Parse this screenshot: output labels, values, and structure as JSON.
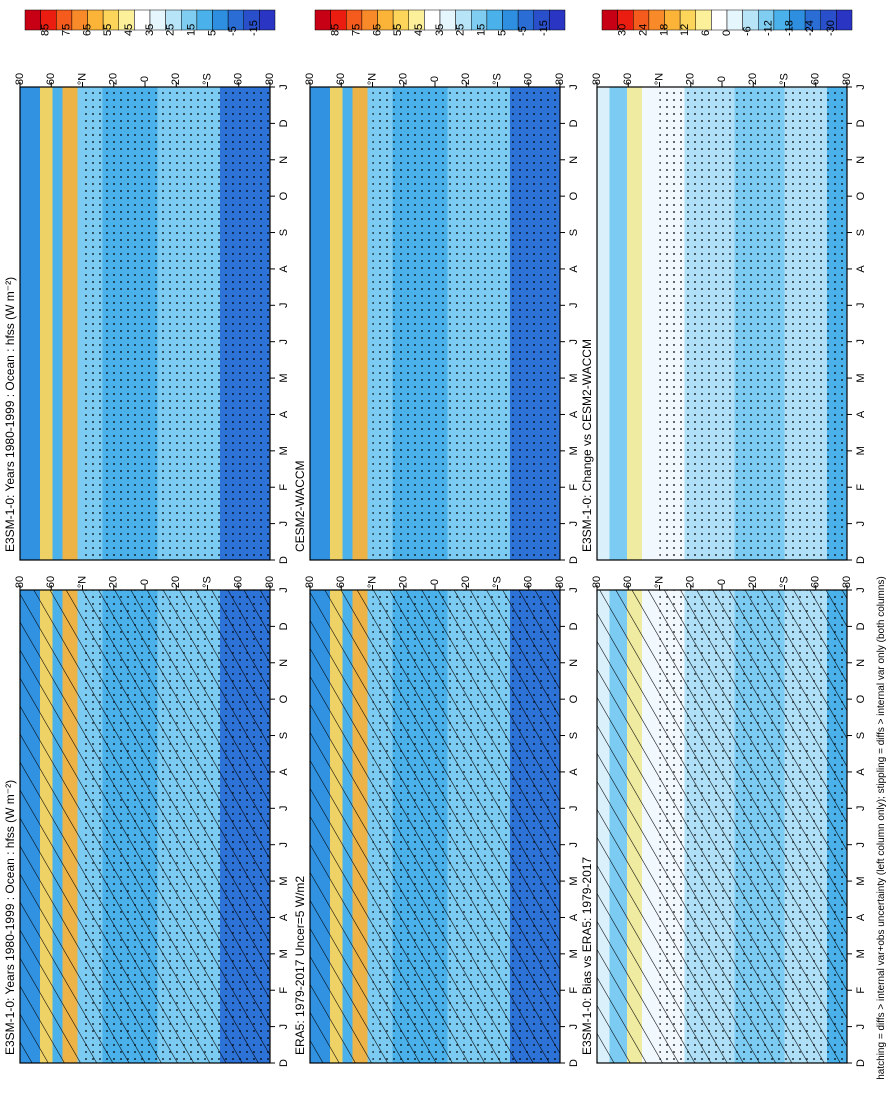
{
  "footnote": "hatching = diffs > internal var+obs uncertainty (left column only); stippling = diffs > internal var only (both columns)",
  "x_tick_labels": [
    "D",
    "J",
    "F",
    "M",
    "A",
    "M",
    "J",
    "J",
    "A",
    "S",
    "O",
    "N",
    "D",
    "J"
  ],
  "y_tick_labels": [
    "80",
    "60",
    "°N",
    "20",
    "0",
    "20",
    "°S",
    "60",
    "80"
  ],
  "colorbars": [
    {
      "labels": [
        "85",
        "75",
        "65",
        "55",
        "45",
        "35",
        "25",
        "15",
        "5",
        "-5",
        "-15"
      ],
      "colors": [
        "#c80016",
        "#ea1d10",
        "#f45b1c",
        "#f98a2a",
        "#fbb338",
        "#fcd55a",
        "#fdf09a",
        "#ffffff",
        "#e6f6fd",
        "#b7e4f7",
        "#80cdf2",
        "#4ab1ea",
        "#2e8fe0",
        "#2a6dd4",
        "#2a4fcb",
        "#2a35c4"
      ]
    },
    {
      "labels": [
        "85",
        "75",
        "65",
        "55",
        "45",
        "35",
        "25",
        "15",
        "5",
        "-5",
        "-15"
      ],
      "colors": [
        "#c80016",
        "#ea1d10",
        "#f45b1c",
        "#f98a2a",
        "#fbb338",
        "#fcd55a",
        "#fdf09a",
        "#ffffff",
        "#e6f6fd",
        "#b7e4f7",
        "#80cdf2",
        "#4ab1ea",
        "#2e8fe0",
        "#2a6dd4",
        "#2a4fcb",
        "#2a35c4"
      ]
    },
    {
      "labels": [
        "30",
        "24",
        "18",
        "12",
        "6",
        "0",
        "-6",
        "-12",
        "-18",
        "-24",
        "-30"
      ],
      "colors": [
        "#c80016",
        "#ea1d10",
        "#f45b1c",
        "#f98a2a",
        "#fbb338",
        "#fcd55a",
        "#fdf09a",
        "#ffffff",
        "#e6f6fd",
        "#b7e4f7",
        "#80cdf2",
        "#4ab1ea",
        "#2e8fe0",
        "#2a6dd4",
        "#2a4fcb",
        "#2a35c4"
      ]
    }
  ],
  "chart_data": [
    {
      "type": "heatmap",
      "title": "E3SM-1-0: Years 1980-1999 : Ocean : hfss (W m⁻²)",
      "xlabel": "",
      "ylabel": "",
      "x": [
        "D",
        "J",
        "F",
        "M",
        "A",
        "M",
        "J",
        "J",
        "A",
        "S",
        "O",
        "N",
        "D",
        "J"
      ],
      "y": [
        "80N",
        "60N",
        "40N",
        "20N",
        "0",
        "20S",
        "40S",
        "60S",
        "80S"
      ],
      "value_range": [
        -15,
        85
      ],
      "overlays": [
        "hatching",
        "stippling"
      ]
    },
    {
      "type": "heatmap",
      "title": "E3SM-1-0: Years 1980-1999 : Ocean : hfss (W m⁻²)",
      "xlabel": "",
      "ylabel": "",
      "x": [
        "D",
        "J",
        "F",
        "M",
        "A",
        "M",
        "J",
        "J",
        "A",
        "S",
        "O",
        "N",
        "D",
        "J"
      ],
      "y": [
        "80N",
        "60N",
        "40N",
        "20N",
        "0",
        "20S",
        "40S",
        "60S",
        "80S"
      ],
      "value_range": [
        -15,
        85
      ],
      "overlays": [
        "stippling"
      ]
    },
    {
      "type": "heatmap",
      "title": "ERA5: 1979-2017 Uncer=5 W/m2",
      "xlabel": "",
      "ylabel": "",
      "x": [
        "D",
        "J",
        "F",
        "M",
        "A",
        "M",
        "J",
        "J",
        "A",
        "S",
        "O",
        "N",
        "D",
        "J"
      ],
      "y": [
        "80N",
        "60N",
        "40N",
        "20N",
        "0",
        "20S",
        "40S",
        "60S",
        "80S"
      ],
      "value_range": [
        -15,
        85
      ],
      "overlays": [
        "hatching",
        "stippling"
      ]
    },
    {
      "type": "heatmap",
      "title": "CESM2-WACCM",
      "xlabel": "",
      "ylabel": "",
      "x": [
        "D",
        "J",
        "F",
        "M",
        "A",
        "M",
        "J",
        "J",
        "A",
        "S",
        "O",
        "N",
        "D",
        "J"
      ],
      "y": [
        "80N",
        "60N",
        "40N",
        "20N",
        "0",
        "20S",
        "40S",
        "60S",
        "80S"
      ],
      "value_range": [
        -15,
        85
      ],
      "overlays": [
        "stippling"
      ]
    },
    {
      "type": "heatmap",
      "title": "E3SM-1-0: Bias vs ERA5: 1979-2017",
      "xlabel": "",
      "ylabel": "",
      "x": [
        "D",
        "J",
        "F",
        "M",
        "A",
        "M",
        "J",
        "J",
        "A",
        "S",
        "O",
        "N",
        "D",
        "J"
      ],
      "y": [
        "80N",
        "60N",
        "40N",
        "20N",
        "0",
        "20S",
        "40S",
        "60S",
        "80S"
      ],
      "value_range": [
        -30,
        30
      ],
      "overlays": [
        "hatching",
        "stippling"
      ]
    },
    {
      "type": "heatmap",
      "title": "E3SM-1-0: Change vs CESM2-WACCM",
      "xlabel": "",
      "ylabel": "",
      "x": [
        "D",
        "J",
        "F",
        "M",
        "A",
        "M",
        "J",
        "J",
        "A",
        "S",
        "O",
        "N",
        "D",
        "J"
      ],
      "y": [
        "80N",
        "60N",
        "40N",
        "20N",
        "0",
        "20S",
        "40S",
        "60S",
        "80S"
      ],
      "value_range": [
        -30,
        30
      ],
      "overlays": [
        "stippling"
      ]
    }
  ]
}
